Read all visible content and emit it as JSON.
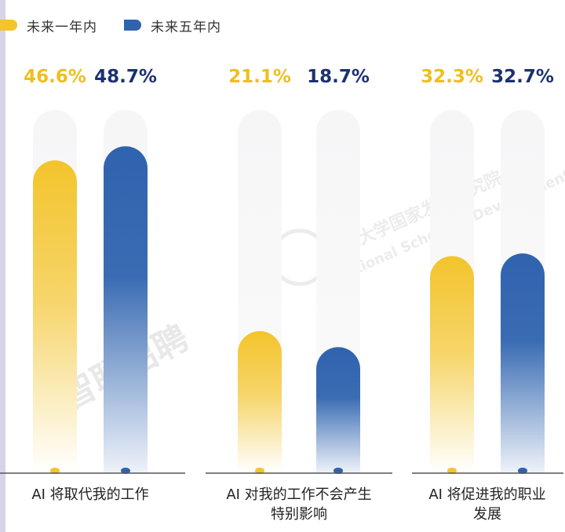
{
  "legend": [
    {
      "label": "未来一年内",
      "color": "#f3c42c"
    },
    {
      "label": "未来五年内",
      "color": "#2f63ae"
    }
  ],
  "watermarks": [
    "智联招聘",
    "北京大学国家发展研究院",
    "National School of Development"
  ],
  "chart_data": {
    "type": "bar",
    "categories": [
      [
        "AI 将取代我的工作"
      ],
      [
        "AI 对我的工作不会产生",
        "特别影响"
      ],
      [
        "AI 将促进我的职业",
        "发展"
      ]
    ],
    "series": [
      {
        "name": "未来一年内",
        "values": [
          46.6,
          21.1,
          32.3
        ],
        "labels": [
          "46.6%",
          "21.1%",
          "32.3%"
        ],
        "color": "#f3c42c"
      },
      {
        "name": "未来五年内",
        "values": [
          48.7,
          18.7,
          32.7
        ],
        "labels": [
          "48.7%",
          "18.7%",
          "32.7%"
        ],
        "color": "#2f63ae"
      }
    ],
    "label_colors": [
      "#f0be1e",
      "#1c3170"
    ],
    "ylim": [
      0,
      60
    ],
    "legend_position": "top-left"
  }
}
